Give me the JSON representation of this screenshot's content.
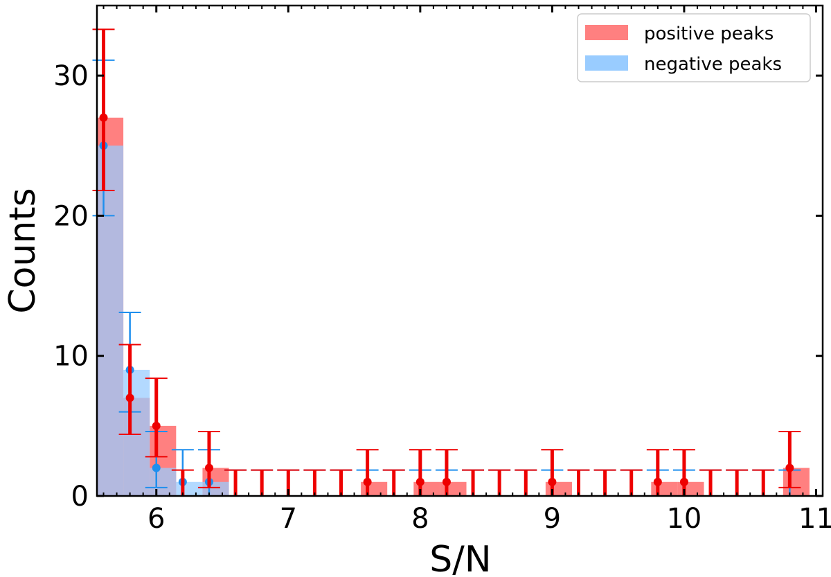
{
  "chart_data": {
    "type": "bar",
    "xlabel": "S/N",
    "ylabel": "Counts",
    "xlim": [
      5.55,
      11.05
    ],
    "ylim": [
      0,
      35
    ],
    "bin_width": 0.2,
    "x_ticks": [
      6,
      7,
      8,
      9,
      10,
      11
    ],
    "y_ticks": [
      0,
      10,
      20,
      30
    ],
    "legend_position": "top-right",
    "grid": false,
    "series": [
      {
        "name": "positive peaks",
        "color": "#ff8080",
        "error_color": "#ee0000",
        "bin_centers": [
          5.65,
          5.85,
          6.05,
          6.25,
          6.45,
          6.65,
          6.85,
          7.05,
          7.25,
          7.45,
          7.65,
          7.85,
          8.05,
          8.25,
          8.45,
          8.65,
          8.85,
          9.05,
          9.25,
          9.45,
          9.65,
          9.85,
          10.05,
          10.25,
          10.45,
          10.65,
          10.85
        ],
        "points": [
          5.6,
          5.8,
          6.0,
          6.2,
          6.4,
          6.6,
          6.8,
          7.0,
          7.2,
          7.4,
          7.6,
          7.8,
          8.0,
          8.2,
          8.4,
          8.6,
          8.8,
          9.0,
          9.2,
          9.4,
          9.6,
          9.8,
          10.0,
          10.2,
          10.4,
          10.6,
          10.8
        ],
        "values": [
          27,
          7,
          5,
          0,
          2,
          0,
          0,
          0,
          0,
          0,
          1,
          0,
          1,
          1,
          0,
          0,
          0,
          1,
          0,
          0,
          0,
          1,
          1,
          0,
          0,
          0,
          2
        ],
        "errors_low": [
          5.2,
          2.6,
          2.2,
          0,
          1.4,
          0,
          0,
          0,
          0,
          0,
          1,
          0,
          1,
          1,
          0,
          0,
          0,
          1,
          0,
          0,
          0,
          1,
          1,
          0,
          0,
          0,
          1.4
        ],
        "errors_high": [
          6.3,
          3.8,
          3.4,
          1.85,
          2.6,
          1.85,
          1.85,
          1.85,
          1.85,
          1.85,
          2.3,
          1.85,
          2.3,
          2.3,
          1.85,
          1.85,
          1.85,
          2.3,
          1.85,
          1.85,
          1.85,
          2.3,
          2.3,
          1.85,
          1.85,
          1.85,
          2.6
        ]
      },
      {
        "name": "negative peaks",
        "color": "#99ccff",
        "error_color": "#1f8fee",
        "bin_centers": [
          5.65,
          5.85,
          6.05,
          6.25,
          6.45,
          6.65,
          6.85,
          7.05,
          7.25,
          7.45,
          7.65,
          7.85,
          8.05,
          8.25,
          8.45,
          8.65,
          8.85,
          9.05,
          9.25,
          9.45,
          9.65,
          9.85,
          10.05,
          10.25,
          10.45,
          10.65,
          10.85
        ],
        "points": [
          5.6,
          5.8,
          6.0,
          6.2,
          6.4,
          6.6,
          6.8,
          7.0,
          7.2,
          7.4,
          7.6,
          7.8,
          8.0,
          8.2,
          8.4,
          8.6,
          8.8,
          9.0,
          9.2,
          9.4,
          9.6,
          9.8,
          10.0,
          10.2,
          10.4,
          10.6,
          10.8
        ],
        "values": [
          25,
          9,
          2,
          1,
          1,
          0,
          0,
          0,
          0,
          0,
          0,
          0,
          0,
          0,
          0,
          0,
          0,
          0,
          0,
          0,
          0,
          0,
          0,
          0,
          0,
          0,
          0
        ],
        "errors_low": [
          5,
          3,
          1.4,
          1,
          1,
          0,
          0,
          0,
          0,
          0,
          0,
          0,
          0,
          0,
          0,
          0,
          0,
          0,
          0,
          0,
          0,
          0,
          0,
          0,
          0,
          0,
          0
        ],
        "errors_high": [
          6.1,
          4.1,
          2.6,
          2.3,
          2.3,
          1.85,
          1.85,
          1.85,
          1.85,
          1.85,
          1.85,
          1.85,
          1.85,
          1.85,
          1.85,
          1.85,
          1.85,
          1.85,
          1.85,
          1.85,
          1.85,
          1.85,
          1.85,
          1.85,
          1.85,
          1.85,
          1.85
        ]
      }
    ]
  }
}
